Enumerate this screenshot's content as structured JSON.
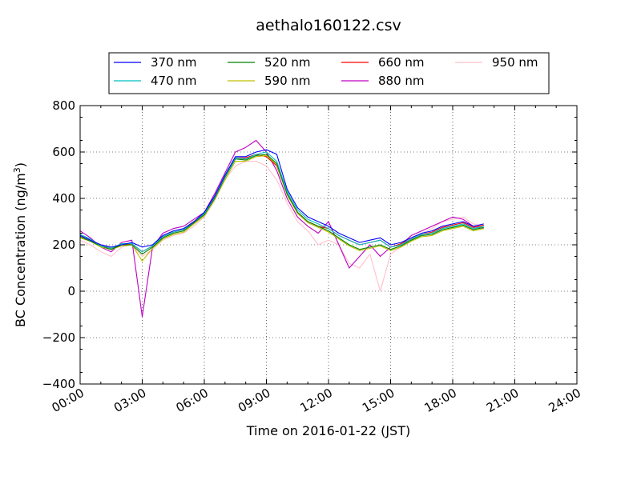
{
  "chart_data": {
    "type": "line",
    "title": "aethalo160122.csv",
    "xlabel": "Time on 2016-01-22 (JST)",
    "ylabel": "BC Concentration (ng/m",
    "ylabel_sup": "3",
    "ylabel_end": ")",
    "xlim": [
      "00:00",
      "24:00"
    ],
    "ylim": [
      -400,
      800
    ],
    "x_ticks": [
      "00:00",
      "03:00",
      "06:00",
      "09:00",
      "12:00",
      "15:00",
      "18:00",
      "21:00",
      "24:00"
    ],
    "y_ticks": [
      "800",
      "600",
      "400",
      "200",
      "0",
      "−200",
      "−400"
    ],
    "grid": true,
    "legend_position": "top-center",
    "x": [
      "00:00",
      "00:30",
      "01:00",
      "01:30",
      "02:00",
      "02:30",
      "03:00",
      "03:30",
      "04:00",
      "04:30",
      "05:00",
      "05:30",
      "06:00",
      "06:30",
      "07:00",
      "07:30",
      "08:00",
      "08:30",
      "09:00",
      "09:30",
      "10:00",
      "10:30",
      "11:00",
      "11:30",
      "12:00",
      "12:30",
      "13:00",
      "13:30",
      "14:00",
      "14:30",
      "15:00",
      "15:30",
      "16:00",
      "16:30",
      "17:00",
      "17:30",
      "18:00",
      "18:30",
      "19:00",
      "19:30"
    ],
    "series": [
      {
        "name": "370 nm",
        "color": "#0000ff",
        "values": [
          240,
          220,
          200,
          190,
          200,
          210,
          190,
          200,
          240,
          260,
          270,
          300,
          340,
          410,
          500,
          580,
          580,
          600,
          610,
          590,
          440,
          360,
          320,
          300,
          280,
          250,
          230,
          210,
          220,
          230,
          200,
          210,
          230,
          250,
          260,
          280,
          290,
          300,
          280,
          290
        ]
      },
      {
        "name": "470 nm",
        "color": "#00bfbf",
        "values": [
          245,
          225,
          195,
          185,
          205,
          205,
          170,
          195,
          235,
          255,
          265,
          300,
          335,
          405,
          495,
          575,
          570,
          590,
          600,
          560,
          430,
          350,
          310,
          290,
          270,
          240,
          220,
          200,
          210,
          220,
          190,
          200,
          225,
          245,
          250,
          270,
          280,
          290,
          270,
          280
        ]
      },
      {
        "name": "520 nm",
        "color": "#008000",
        "values": [
          235,
          215,
          195,
          180,
          200,
          200,
          160,
          190,
          230,
          250,
          260,
          295,
          330,
          400,
          490,
          570,
          565,
          585,
          590,
          550,
          420,
          340,
          300,
          280,
          260,
          230,
          200,
          180,
          190,
          200,
          180,
          195,
          220,
          240,
          245,
          265,
          275,
          285,
          265,
          275
        ]
      },
      {
        "name": "590 nm",
        "color": "#bfbf00",
        "values": [
          230,
          215,
          190,
          180,
          195,
          200,
          130,
          185,
          225,
          245,
          255,
          290,
          325,
          395,
          480,
          560,
          560,
          580,
          585,
          545,
          415,
          335,
          295,
          275,
          255,
          225,
          195,
          175,
          185,
          195,
          175,
          190,
          215,
          235,
          240,
          260,
          270,
          280,
          260,
          270
        ]
      },
      {
        "name": "660 nm",
        "color": "#ff0000",
        "values": [
          240,
          220,
          200,
          185,
          200,
          205,
          170,
          195,
          235,
          255,
          265,
          300,
          335,
          405,
          495,
          575,
          575,
          590,
          580,
          540,
          420,
          340,
          300,
          280,
          270,
          240,
          220,
          200,
          210,
          220,
          190,
          205,
          225,
          245,
          255,
          275,
          285,
          295,
          275,
          285
        ]
      },
      {
        "name": "880 nm",
        "color": "#bf00bf",
        "values": [
          260,
          230,
          190,
          170,
          210,
          220,
          -110,
          190,
          250,
          270,
          280,
          310,
          340,
          420,
          510,
          600,
          620,
          650,
          600,
          520,
          400,
          320,
          280,
          250,
          300,
          200,
          100,
          150,
          200,
          150,
          190,
          200,
          240,
          260,
          280,
          300,
          320,
          310,
          280,
          270
        ]
      },
      {
        "name": "950 nm",
        "color": "#ffc0cb",
        "values": [
          220,
          200,
          170,
          150,
          190,
          200,
          150,
          180,
          220,
          240,
          250,
          280,
          320,
          390,
          480,
          540,
          560,
          560,
          540,
          480,
          380,
          300,
          260,
          200,
          220,
          200,
          120,
          100,
          160,
          0,
          160,
          190,
          220,
          250,
          270,
          300,
          310,
          320,
          290,
          280
        ]
      }
    ]
  }
}
